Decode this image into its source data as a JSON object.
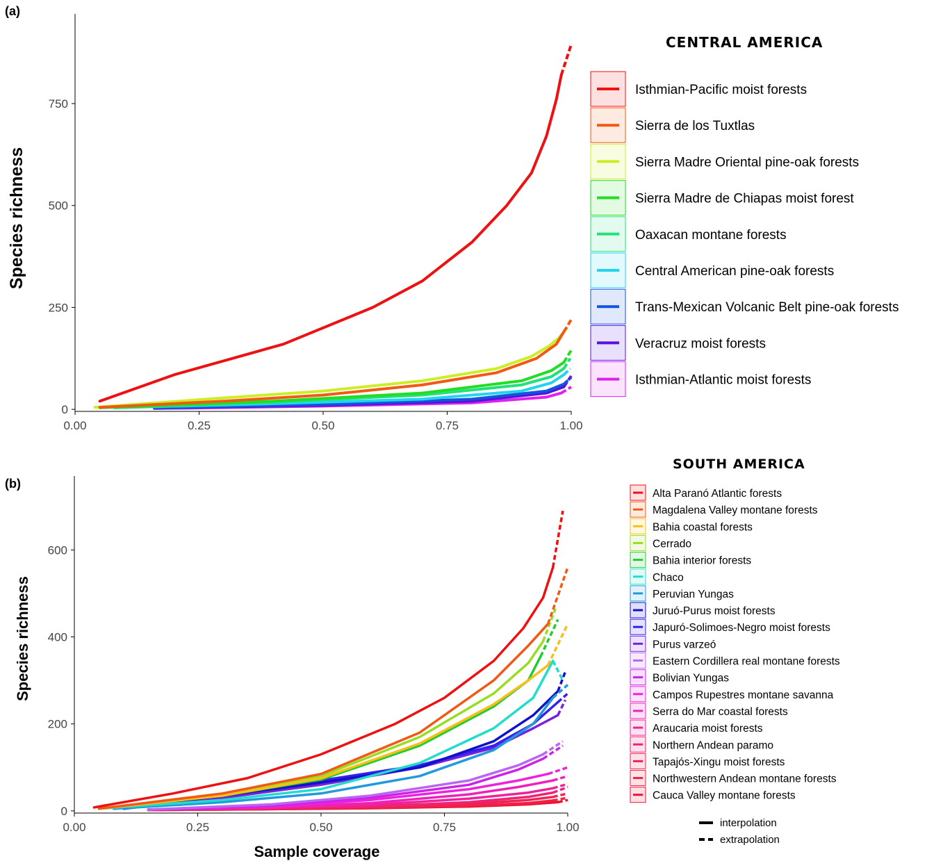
{
  "panel_a": {
    "label": "(a)",
    "legend_title": "CENTRAL AMERICA"
  },
  "panel_b": {
    "label": "(b)",
    "legend_title": "SOUTH AMERICA"
  },
  "key": {
    "interpolation": "interpolation",
    "extrapolation": "extrapolation"
  },
  "chart_data": [
    {
      "type": "line",
      "xlabel": "",
      "ylabel": "Species richness",
      "xlim": [
        0.0,
        1.0
      ],
      "ylim": [
        -5,
        970
      ],
      "xticks": [
        "0.00",
        "0.25",
        "0.50",
        "0.75",
        "1.00"
      ],
      "yticks": [
        "0",
        "250",
        "500",
        "750"
      ],
      "legend": "right",
      "series": [
        {
          "name": "Isthmian-Pacific moist forests",
          "color": "#EE1111",
          "x": [
            0.05,
            0.2,
            0.42,
            0.6,
            0.7,
            0.8,
            0.87,
            0.92,
            0.95,
            0.97,
            0.98
          ],
          "y": [
            20,
            85,
            160,
            250,
            315,
            410,
            500,
            580,
            670,
            760,
            820
          ],
          "extrap_x": [
            0.98,
            1.0
          ],
          "extrap_y": [
            820,
            895
          ]
        },
        {
          "name": "Sierra de los Tuxtlas",
          "color": "#F05A14",
          "x": [
            0.05,
            0.3,
            0.5,
            0.7,
            0.85,
            0.93,
            0.97,
            0.985
          ],
          "y": [
            5,
            20,
            35,
            60,
            90,
            125,
            160,
            190
          ],
          "extrap_x": [
            0.985,
            1.0
          ],
          "extrap_y": [
            190,
            220
          ]
        },
        {
          "name": "Sierra Madre Oriental pine-oak forests",
          "color": "#CCEE22",
          "x": [
            0.04,
            0.3,
            0.5,
            0.7,
            0.85,
            0.92,
            0.955,
            0.975
          ],
          "y": [
            5,
            28,
            45,
            70,
            100,
            130,
            155,
            175
          ],
          "extrap_x": [
            0.975,
            0.995
          ],
          "extrap_y": [
            175,
            205
          ]
        },
        {
          "name": "Sierra Madre de Chiapas moist forest",
          "color": "#22DD22",
          "x": [
            0.05,
            0.4,
            0.7,
            0.9,
            0.96,
            0.985
          ],
          "y": [
            4,
            20,
            40,
            70,
            95,
            115
          ],
          "extrap_x": [
            0.985,
            1.0
          ],
          "extrap_y": [
            115,
            145
          ]
        },
        {
          "name": "Oaxacan montane forests",
          "color": "#22E07A",
          "x": [
            0.08,
            0.4,
            0.7,
            0.9,
            0.96,
            0.985
          ],
          "y": [
            4,
            18,
            35,
            60,
            80,
            100
          ],
          "extrap_x": [
            0.985,
            0.998
          ],
          "extrap_y": [
            100,
            125
          ]
        },
        {
          "name": "Central American pine-oak forests",
          "color": "#22D4EE",
          "x": [
            0.08,
            0.4,
            0.7,
            0.9,
            0.96,
            0.985
          ],
          "y": [
            4,
            14,
            25,
            45,
            65,
            85
          ],
          "extrap_x": [
            0.985,
            0.998
          ],
          "extrap_y": [
            85,
            100
          ]
        },
        {
          "name": "Trans-Mexican Volcanic Belt pine-oak forests",
          "color": "#1155DD",
          "x": [
            0.16,
            0.5,
            0.8,
            0.95,
            0.985
          ],
          "y": [
            3,
            12,
            25,
            45,
            62
          ],
          "extrap_x": [
            0.985,
            1.0
          ],
          "extrap_y": [
            62,
            78
          ]
        },
        {
          "name": "Veracruz moist forests",
          "color": "#5511DD",
          "x": [
            0.16,
            0.5,
            0.8,
            0.95,
            0.985
          ],
          "y": [
            3,
            10,
            20,
            40,
            55
          ],
          "extrap_x": [
            0.985,
            1.0
          ],
          "extrap_y": [
            55,
            82
          ]
        },
        {
          "name": "Isthmian-Atlantic moist forests",
          "color": "#DD22EE",
          "x": [
            0.16,
            0.5,
            0.8,
            0.95,
            0.98
          ],
          "y": [
            2,
            8,
            16,
            30,
            40
          ],
          "extrap_x": [
            0.98,
            1.0
          ],
          "extrap_y": [
            40,
            55
          ]
        }
      ]
    },
    {
      "type": "line",
      "xlabel": "Sample coverage",
      "ylabel": "Species richness",
      "xlim": [
        0.0,
        1.0
      ],
      "ylim": [
        -5,
        770
      ],
      "xticks": [
        "0.00",
        "0.25",
        "0.50",
        "0.75",
        "1.00"
      ],
      "yticks": [
        "0",
        "200",
        "400",
        "600"
      ],
      "legend": "right",
      "series": [
        {
          "name": "Alta Paranó Atlantic forests",
          "color": "#EE1111",
          "x": [
            0.04,
            0.2,
            0.35,
            0.5,
            0.65,
            0.75,
            0.85,
            0.91,
            0.95,
            0.97
          ],
          "y": [
            8,
            40,
            75,
            130,
            200,
            260,
            345,
            420,
            490,
            560
          ],
          "extrap_x": [
            0.97,
            0.99
          ],
          "extrap_y": [
            560,
            690
          ]
        },
        {
          "name": "Magdalena Valley montane forests",
          "color": "#F05A14",
          "x": [
            0.05,
            0.3,
            0.5,
            0.7,
            0.85,
            0.92,
            0.96
          ],
          "y": [
            5,
            40,
            85,
            180,
            300,
            380,
            430
          ],
          "extrap_x": [
            0.96,
            1.0
          ],
          "extrap_y": [
            430,
            560
          ]
        },
        {
          "name": "Bahia coastal forests",
          "color": "#F5C018",
          "x": [
            0.05,
            0.3,
            0.5,
            0.7,
            0.85,
            0.92,
            0.96
          ],
          "y": [
            5,
            35,
            75,
            155,
            245,
            300,
            335
          ],
          "extrap_x": [
            0.96,
            1.0
          ],
          "extrap_y": [
            335,
            430
          ]
        },
        {
          "name": "Cerrado",
          "color": "#99DD22",
          "x": [
            0.05,
            0.3,
            0.5,
            0.7,
            0.85,
            0.92,
            0.95
          ],
          "y": [
            5,
            38,
            80,
            170,
            270,
            340,
            390
          ],
          "extrap_x": [
            0.95,
            0.975
          ],
          "extrap_y": [
            390,
            465
          ]
        },
        {
          "name": "Bahia interior forests",
          "color": "#22CC33",
          "x": [
            0.05,
            0.3,
            0.5,
            0.7,
            0.85,
            0.92,
            0.945
          ],
          "y": [
            5,
            35,
            72,
            150,
            240,
            300,
            355
          ],
          "extrap_x": [
            0.945,
            0.98
          ],
          "extrap_y": [
            355,
            440
          ]
        },
        {
          "name": "Chaco",
          "color": "#22DDCC",
          "x": [
            0.05,
            0.3,
            0.5,
            0.7,
            0.85,
            0.93,
            0.97
          ],
          "y": [
            5,
            25,
            50,
            110,
            190,
            260,
            345
          ],
          "extrap_x": [
            0.97,
            0.99
          ],
          "extrap_y": [
            345,
            300
          ]
        },
        {
          "name": "Peruvian Yungas",
          "color": "#2299DD",
          "x": [
            0.08,
            0.3,
            0.5,
            0.7,
            0.85,
            0.93,
            0.97
          ],
          "y": [
            5,
            20,
            40,
            80,
            140,
            200,
            260
          ],
          "extrap_x": [
            0.97,
            1.0
          ],
          "extrap_y": [
            260,
            290
          ]
        },
        {
          "name": "Juruó-Purus moist forests",
          "color": "#1111CC",
          "x": [
            0.08,
            0.3,
            0.5,
            0.7,
            0.85,
            0.93,
            0.98
          ],
          "y": [
            5,
            35,
            65,
            100,
            160,
            220,
            275
          ],
          "extrap_x": [
            0.98,
            0.995
          ],
          "extrap_y": [
            275,
            320
          ]
        },
        {
          "name": "Japuró-Solimoes-Negro moist forests",
          "color": "#3322EE",
          "x": [
            0.1,
            0.3,
            0.5,
            0.7,
            0.85,
            0.93,
            0.98
          ],
          "y": [
            5,
            35,
            70,
            105,
            150,
            200,
            250
          ],
          "extrap_x": [
            0.98,
            1.0
          ],
          "extrap_y": [
            250,
            270
          ]
        },
        {
          "name": "Purus varzeó",
          "color": "#7722DD",
          "x": [
            0.1,
            0.3,
            0.5,
            0.7,
            0.85,
            0.93,
            0.98
          ],
          "y": [
            5,
            30,
            60,
            100,
            145,
            190,
            220
          ],
          "extrap_x": [
            0.98,
            0.995
          ],
          "extrap_y": [
            220,
            255
          ]
        },
        {
          "name": "Eastern Cordillera real montane forests",
          "color": "#BB66EE",
          "x": [
            0.15,
            0.4,
            0.6,
            0.8,
            0.9,
            0.95
          ],
          "y": [
            3,
            15,
            35,
            70,
            105,
            130
          ],
          "extrap_x": [
            0.95,
            0.99
          ],
          "extrap_y": [
            130,
            160
          ]
        },
        {
          "name": "Bolivian Yungas",
          "color": "#CC22EE",
          "x": [
            0.15,
            0.4,
            0.6,
            0.8,
            0.9,
            0.95
          ],
          "y": [
            3,
            12,
            30,
            60,
            95,
            120
          ],
          "extrap_x": [
            0.95,
            0.99
          ],
          "extrap_y": [
            120,
            150
          ]
        },
        {
          "name": "Campos Rupestres montane savanna",
          "color": "#EE22DD",
          "x": [
            0.15,
            0.4,
            0.6,
            0.8,
            0.9,
            0.96
          ],
          "y": [
            3,
            10,
            25,
            50,
            70,
            85
          ],
          "extrap_x": [
            0.96,
            1.0
          ],
          "extrap_y": [
            85,
            100
          ]
        },
        {
          "name": "Serra do Mar coastal forests",
          "color": "#EE22BB",
          "x": [
            0.15,
            0.4,
            0.6,
            0.8,
            0.9,
            0.97
          ],
          "y": [
            3,
            8,
            18,
            38,
            55,
            70
          ],
          "extrap_x": [
            0.97,
            1.0
          ],
          "extrap_y": [
            70,
            80
          ]
        },
        {
          "name": "Araucaria moist forests",
          "color": "#EE2299",
          "x": [
            0.15,
            0.4,
            0.6,
            0.8,
            0.92,
            0.97
          ],
          "y": [
            3,
            7,
            14,
            28,
            42,
            52
          ],
          "extrap_x": [
            0.97,
            1.0
          ],
          "extrap_y": [
            52,
            62
          ]
        },
        {
          "name": "Northern Andean paramo",
          "color": "#EE2277",
          "x": [
            0.15,
            0.4,
            0.6,
            0.8,
            0.92,
            0.97
          ],
          "y": [
            3,
            6,
            10,
            20,
            32,
            42
          ],
          "extrap_x": [
            0.97,
            1.0
          ],
          "extrap_y": [
            42,
            55
          ]
        },
        {
          "name": "Tapajós-Xingu moist forests",
          "color": "#EE2255",
          "x": [
            0.15,
            0.4,
            0.6,
            0.8,
            0.92,
            0.97
          ],
          "y": [
            3,
            5,
            9,
            16,
            25,
            32
          ],
          "extrap_x": [
            0.97,
            1.0
          ],
          "extrap_y": [
            32,
            40
          ]
        },
        {
          "name": "Northwestern Andean montane forests",
          "color": "#EE2244",
          "x": [
            0.15,
            0.4,
            0.6,
            0.8,
            0.92,
            0.97
          ],
          "y": [
            2,
            4,
            7,
            12,
            18,
            24
          ],
          "extrap_x": [
            0.97,
            1.0
          ],
          "extrap_y": [
            24,
            30
          ]
        },
        {
          "name": "Cauca Valley montane forests",
          "color": "#EE1133",
          "x": [
            0.15,
            0.4,
            0.6,
            0.8,
            0.92,
            0.98
          ],
          "y": [
            2,
            4,
            6,
            10,
            15,
            20
          ],
          "extrap_x": [
            0.98,
            1.0
          ],
          "extrap_y": [
            20,
            25
          ]
        }
      ]
    }
  ]
}
